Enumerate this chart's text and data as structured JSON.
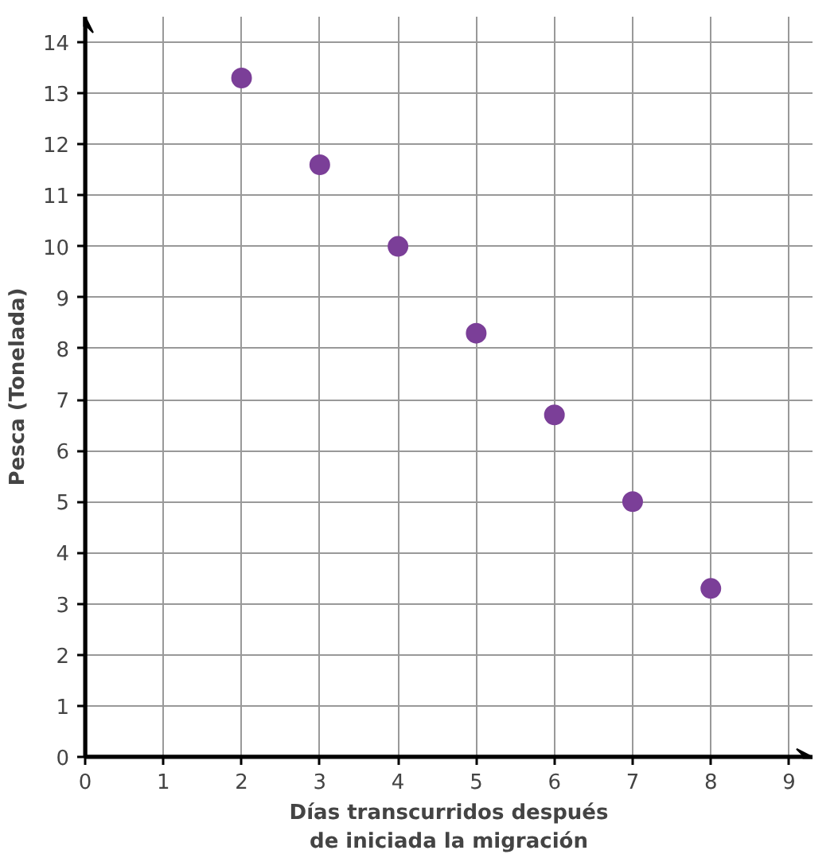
{
  "chart_data": {
    "type": "scatter",
    "xlabel": "Días transcurridos después\nde iniciada la migración",
    "ylabel": "Pesca (Tonelada)",
    "x": [
      2,
      3,
      4,
      5,
      6,
      7,
      8
    ],
    "series": [
      {
        "color": "#7b3f98",
        "values": [
          13.3,
          11.6,
          10,
          8.3,
          6.7,
          5,
          3.3
        ]
      }
    ],
    "xlim": [
      0,
      9.3
    ],
    "ylim": [
      0,
      14.5
    ],
    "xticks": [
      0,
      1,
      2,
      3,
      4,
      5,
      6,
      7,
      8,
      9
    ],
    "yticks": [
      0,
      1,
      2,
      3,
      4,
      5,
      6,
      7,
      8,
      9,
      10,
      11,
      12,
      13,
      14
    ],
    "grid": true,
    "marker": "circle"
  }
}
